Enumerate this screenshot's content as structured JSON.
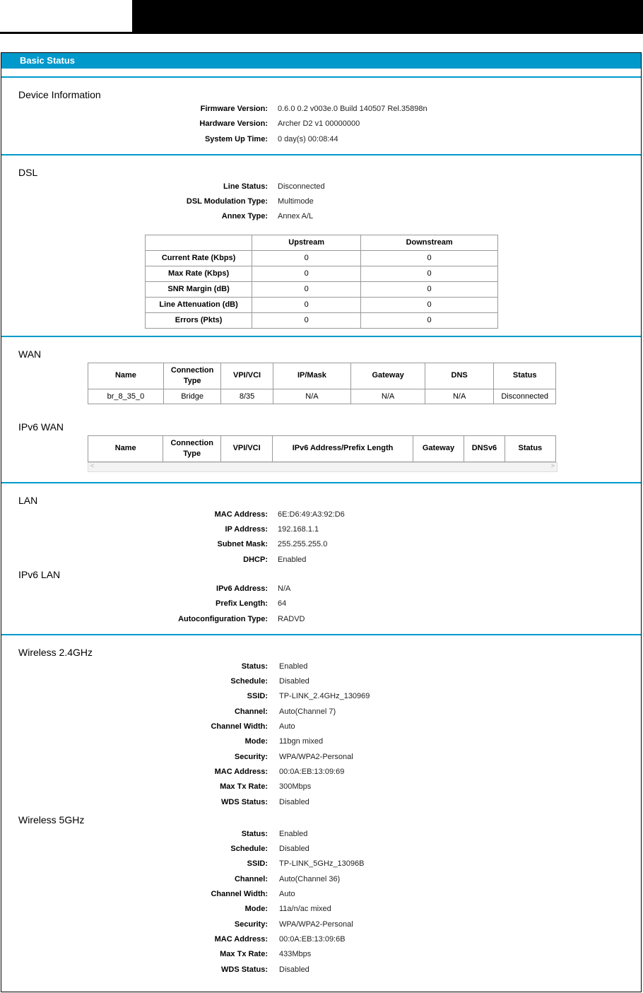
{
  "title": "Basic Status",
  "device": {
    "heading": "Device Information",
    "rows": [
      [
        "Firmware Version:",
        "0.6.0 0.2 v003e.0 Build 140507 Rel.35898n"
      ],
      [
        "Hardware Version:",
        "Archer D2 v1 00000000"
      ],
      [
        "System Up Time:",
        "0 day(s) 00:08:44"
      ]
    ]
  },
  "dsl": {
    "heading": "DSL",
    "rows": [
      [
        "Line Status:",
        "Disconnected"
      ],
      [
        "DSL Modulation Type:",
        "Multimode"
      ],
      [
        "Annex Type:",
        "Annex A/L"
      ]
    ],
    "table": {
      "headers": [
        "",
        "Upstream",
        "Downstream"
      ],
      "rows": [
        [
          "Current Rate (Kbps)",
          "0",
          "0"
        ],
        [
          "Max Rate (Kbps)",
          "0",
          "0"
        ],
        [
          "SNR Margin (dB)",
          "0",
          "0"
        ],
        [
          "Line Attenuation (dB)",
          "0",
          "0"
        ],
        [
          "Errors (Pkts)",
          "0",
          "0"
        ]
      ]
    }
  },
  "wan": {
    "heading": "WAN",
    "headers": [
      "Name",
      "Connection Type",
      "VPI/VCI",
      "IP/Mask",
      "Gateway",
      "DNS",
      "Status"
    ],
    "rows": [
      [
        "br_8_35_0",
        "Bridge",
        "8/35",
        "N/A",
        "N/A",
        "N/A",
        "Disconnected"
      ]
    ]
  },
  "ipv6wan": {
    "heading": "IPv6 WAN",
    "headers": [
      "Name",
      "Connection Type",
      "VPI/VCI",
      "IPv6 Address/Prefix Length",
      "Gateway",
      "DNSv6",
      "Status"
    ]
  },
  "lan": {
    "heading": "LAN",
    "rows": [
      [
        "MAC Address:",
        "6E:D6:49:A3:92:D6"
      ],
      [
        "IP Address:",
        "192.168.1.1"
      ],
      [
        "Subnet Mask:",
        "255.255.255.0"
      ],
      [
        "DHCP:",
        "Enabled"
      ]
    ]
  },
  "ipv6lan": {
    "heading": "IPv6 LAN",
    "rows": [
      [
        "IPv6 Address:",
        "N/A"
      ],
      [
        "Prefix Length:",
        "64"
      ],
      [
        "Autoconfiguration Type:",
        "RADVD"
      ]
    ]
  },
  "w24": {
    "heading": "Wireless 2.4GHz",
    "rows": [
      [
        "Status:",
        "Enabled"
      ],
      [
        "Schedule:",
        "Disabled"
      ],
      [
        "SSID:",
        "TP-LINK_2.4GHz_130969"
      ],
      [
        "Channel:",
        "Auto(Channel 7)"
      ],
      [
        "Channel Width:",
        "Auto"
      ],
      [
        "Mode:",
        "11bgn mixed"
      ],
      [
        "Security:",
        "WPA/WPA2-Personal"
      ],
      [
        "MAC Address:",
        "00:0A:EB:13:09:69"
      ],
      [
        "Max Tx Rate:",
        "300Mbps"
      ],
      [
        "WDS Status:",
        "Disabled"
      ]
    ]
  },
  "w5": {
    "heading": "Wireless 5GHz",
    "rows": [
      [
        "Status:",
        "Enabled"
      ],
      [
        "Schedule:",
        "Disabled"
      ],
      [
        "SSID:",
        "TP-LINK_5GHz_13096B"
      ],
      [
        "Channel:",
        "Auto(Channel 36)"
      ],
      [
        "Channel Width:",
        "Auto"
      ],
      [
        "Mode:",
        "11a/n/ac mixed"
      ],
      [
        "Security:",
        "WPA/WPA2-Personal"
      ],
      [
        "MAC Address:",
        "00:0A:EB:13:09:6B"
      ],
      [
        "Max Tx Rate:",
        "433Mbps"
      ],
      [
        "WDS Status:",
        "Disabled"
      ]
    ]
  },
  "colors": {
    "accent": "#0099cc"
  }
}
